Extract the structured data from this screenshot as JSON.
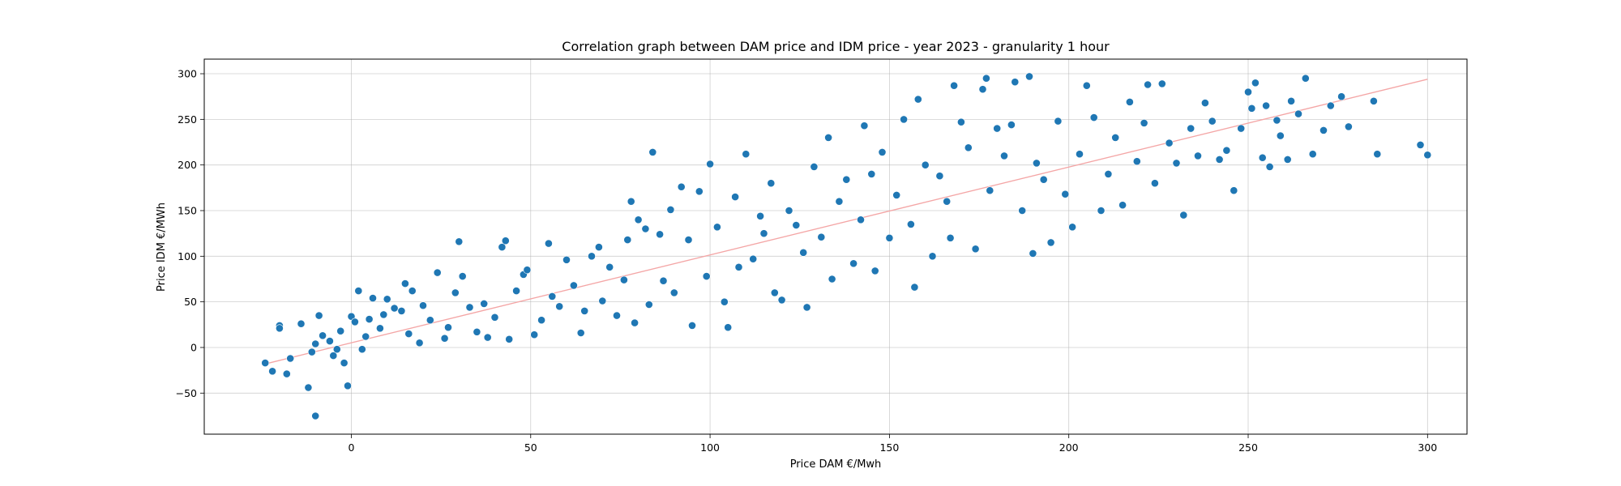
{
  "chart_data": {
    "type": "scatter",
    "title": "Correlation graph between DAM price and IDM price - year 2023 - granularity 1 hour",
    "xlabel": "Price DAM €/Mwh",
    "ylabel": "Price IDM €/MWh",
    "xlim": [
      -41,
      311
    ],
    "ylim": [
      -95,
      316
    ],
    "x_ticks": [
      "0",
      "50",
      "100",
      "150",
      "200",
      "250",
      "300"
    ],
    "x_tick_values": [
      0,
      50,
      100,
      150,
      200,
      250,
      300
    ],
    "y_ticks": [
      "−50",
      "0",
      "50",
      "100",
      "150",
      "200",
      "250",
      "300"
    ],
    "y_tick_values": [
      -50,
      0,
      50,
      100,
      150,
      200,
      250,
      300
    ],
    "grid": true,
    "colors": {
      "points": "#1f77b4",
      "trendline": "#f4a6a6"
    },
    "trendline": {
      "x": [
        -24,
        300
      ],
      "y": [
        -18,
        294
      ]
    },
    "series": [
      {
        "points": [
          [
            -24,
            -17
          ],
          [
            -22,
            -26
          ],
          [
            -20,
            24
          ],
          [
            -20,
            21
          ],
          [
            -18,
            -29
          ],
          [
            -17,
            -12
          ],
          [
            -14,
            26
          ],
          [
            -12,
            -44
          ],
          [
            -10,
            -75
          ],
          [
            -9,
            35
          ],
          [
            -8,
            13
          ],
          [
            -11,
            -5
          ],
          [
            -10,
            4
          ],
          [
            -6,
            7
          ],
          [
            -5,
            -9
          ],
          [
            -4,
            -2
          ],
          [
            -3,
            18
          ],
          [
            -2,
            -17
          ],
          [
            -1,
            -42
          ],
          [
            0,
            34
          ],
          [
            1,
            28
          ],
          [
            2,
            62
          ],
          [
            3,
            -2
          ],
          [
            4,
            12
          ],
          [
            5,
            31
          ],
          [
            6,
            54
          ],
          [
            8,
            21
          ],
          [
            9,
            36
          ],
          [
            10,
            53
          ],
          [
            12,
            43
          ],
          [
            14,
            40
          ],
          [
            15,
            70
          ],
          [
            16,
            15
          ],
          [
            17,
            62
          ],
          [
            19,
            5
          ],
          [
            20,
            46
          ],
          [
            22,
            30
          ],
          [
            24,
            82
          ],
          [
            26,
            10
          ],
          [
            27,
            22
          ],
          [
            29,
            60
          ],
          [
            30,
            116
          ],
          [
            31,
            78
          ],
          [
            33,
            44
          ],
          [
            35,
            17
          ],
          [
            37,
            48
          ],
          [
            38,
            11
          ],
          [
            40,
            33
          ],
          [
            42,
            110
          ],
          [
            43,
            117
          ],
          [
            44,
            9
          ],
          [
            46,
            62
          ],
          [
            48,
            80
          ],
          [
            49,
            85
          ],
          [
            51,
            14
          ],
          [
            53,
            30
          ],
          [
            55,
            114
          ],
          [
            56,
            56
          ],
          [
            58,
            45
          ],
          [
            60,
            96
          ],
          [
            62,
            68
          ],
          [
            64,
            16
          ],
          [
            65,
            40
          ],
          [
            67,
            100
          ],
          [
            69,
            110
          ],
          [
            70,
            51
          ],
          [
            72,
            88
          ],
          [
            74,
            35
          ],
          [
            76,
            74
          ],
          [
            77,
            118
          ],
          [
            78,
            160
          ],
          [
            79,
            27
          ],
          [
            80,
            140
          ],
          [
            82,
            130
          ],
          [
            83,
            47
          ],
          [
            84,
            214
          ],
          [
            86,
            124
          ],
          [
            87,
            73
          ],
          [
            89,
            151
          ],
          [
            90,
            60
          ],
          [
            92,
            176
          ],
          [
            94,
            118
          ],
          [
            95,
            24
          ],
          [
            97,
            171
          ],
          [
            99,
            78
          ],
          [
            100,
            201
          ],
          [
            102,
            132
          ],
          [
            104,
            50
          ],
          [
            105,
            22
          ],
          [
            107,
            165
          ],
          [
            108,
            88
          ],
          [
            110,
            212
          ],
          [
            112,
            97
          ],
          [
            114,
            144
          ],
          [
            115,
            125
          ],
          [
            117,
            180
          ],
          [
            118,
            60
          ],
          [
            120,
            52
          ],
          [
            122,
            150
          ],
          [
            124,
            134
          ],
          [
            126,
            104
          ],
          [
            127,
            44
          ],
          [
            129,
            198
          ],
          [
            131,
            121
          ],
          [
            133,
            230
          ],
          [
            134,
            75
          ],
          [
            136,
            160
          ],
          [
            138,
            184
          ],
          [
            140,
            92
          ],
          [
            142,
            140
          ],
          [
            143,
            243
          ],
          [
            145,
            190
          ],
          [
            146,
            84
          ],
          [
            148,
            214
          ],
          [
            150,
            120
          ],
          [
            152,
            167
          ],
          [
            154,
            250
          ],
          [
            156,
            135
          ],
          [
            157,
            66
          ],
          [
            158,
            272
          ],
          [
            160,
            200
          ],
          [
            162,
            100
          ],
          [
            164,
            188
          ],
          [
            166,
            160
          ],
          [
            167,
            120
          ],
          [
            168,
            287
          ],
          [
            170,
            247
          ],
          [
            172,
            219
          ],
          [
            174,
            108
          ],
          [
            176,
            283
          ],
          [
            177,
            295
          ],
          [
            178,
            172
          ],
          [
            180,
            240
          ],
          [
            182,
            210
          ],
          [
            184,
            244
          ],
          [
            185,
            291
          ],
          [
            187,
            150
          ],
          [
            189,
            297
          ],
          [
            190,
            103
          ],
          [
            191,
            202
          ],
          [
            193,
            184
          ],
          [
            195,
            115
          ],
          [
            197,
            248
          ],
          [
            199,
            168
          ],
          [
            201,
            132
          ],
          [
            203,
            212
          ],
          [
            205,
            287
          ],
          [
            207,
            252
          ],
          [
            209,
            150
          ],
          [
            211,
            190
          ],
          [
            213,
            230
          ],
          [
            215,
            156
          ],
          [
            217,
            269
          ],
          [
            219,
            204
          ],
          [
            221,
            246
          ],
          [
            222,
            288
          ],
          [
            224,
            180
          ],
          [
            226,
            289
          ],
          [
            228,
            224
          ],
          [
            230,
            202
          ],
          [
            232,
            145
          ],
          [
            234,
            240
          ],
          [
            236,
            210
          ],
          [
            238,
            268
          ],
          [
            240,
            248
          ],
          [
            242,
            206
          ],
          [
            244,
            216
          ],
          [
            246,
            172
          ],
          [
            248,
            240
          ],
          [
            250,
            280
          ],
          [
            251,
            262
          ],
          [
            252,
            290
          ],
          [
            254,
            208
          ],
          [
            255,
            265
          ],
          [
            256,
            198
          ],
          [
            258,
            249
          ],
          [
            259,
            232
          ],
          [
            261,
            206
          ],
          [
            262,
            270
          ],
          [
            264,
            256
          ],
          [
            266,
            295
          ],
          [
            268,
            212
          ],
          [
            271,
            238
          ],
          [
            273,
            265
          ],
          [
            276,
            275
          ],
          [
            278,
            242
          ],
          [
            285,
            270
          ],
          [
            286,
            212
          ],
          [
            298,
            222
          ],
          [
            300,
            211
          ]
        ]
      }
    ]
  }
}
